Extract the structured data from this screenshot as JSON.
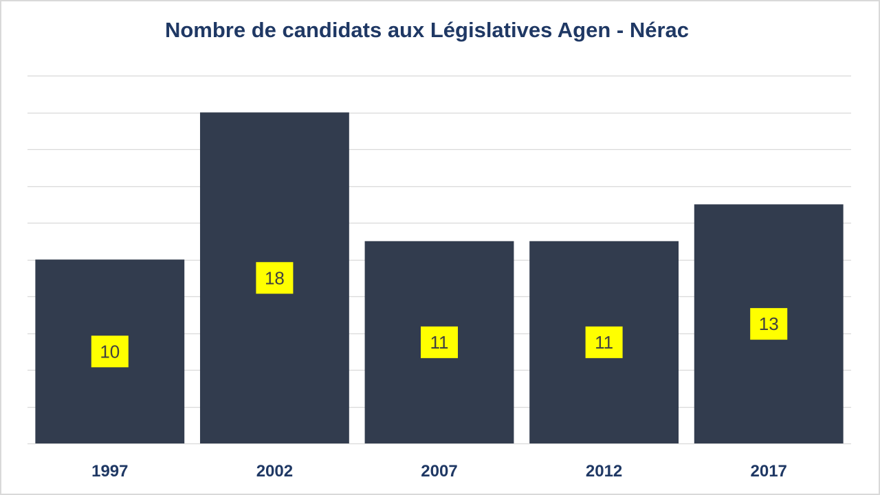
{
  "chart_data": {
    "type": "bar",
    "title": "Nombre de candidats aux Législatives Agen - Nérac",
    "xlabel": "",
    "ylabel": "",
    "categories": [
      "1997",
      "2002",
      "2007",
      "2012",
      "2017"
    ],
    "values": [
      10,
      18,
      11,
      11,
      13
    ],
    "ylim": [
      0,
      20
    ],
    "grid": true,
    "legend": "none",
    "colors": {
      "bar": "#323c4e",
      "label_background": "#ffff00",
      "label_text": "#404040",
      "title": "#1f3864",
      "axis_labels": "#1f3864",
      "gridline": "#d9d9d9"
    }
  }
}
